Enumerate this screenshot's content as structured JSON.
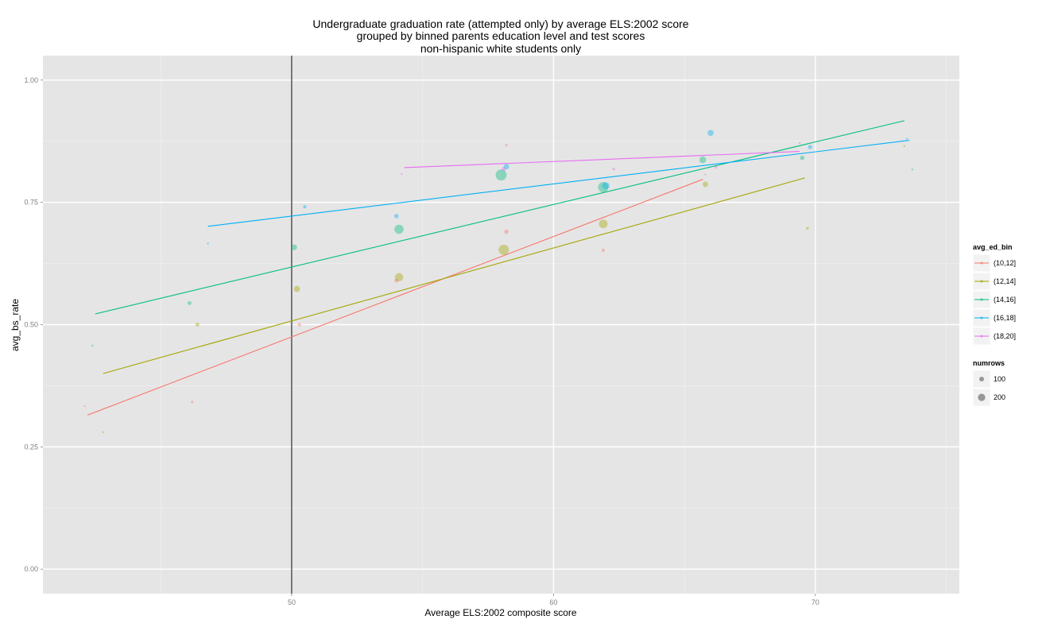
{
  "chart_data": {
    "type": "scatter",
    "title": [
      "Undergraduate graduation rate (attempted only) by average ELS:2002 score",
      "grouped by binned parents education level and test scores",
      "non-hispanic white students only"
    ],
    "xlabel": "Average ELS:2002 composite score",
    "ylabel": "avg_bs_rate",
    "xlim": [
      40.5,
      75.5
    ],
    "ylim": [
      -0.05,
      1.05
    ],
    "x_ticks": [
      50,
      60,
      70
    ],
    "x_tick_labels": [
      "50",
      "60",
      "70"
    ],
    "y_ticks": [
      0,
      0.25,
      0.5,
      0.75,
      1.0
    ],
    "y_tick_labels": [
      "0.00",
      "0.25",
      "0.50",
      "0.75",
      "1.00"
    ],
    "grid": true,
    "vline_x": 50,
    "legend_placement": "right",
    "color_legend": {
      "title": "avg_ed_bin",
      "entries": [
        "(10,12]",
        "(12,14]",
        "(14,16]",
        "(16,18]",
        "(18,20]"
      ]
    },
    "size_legend": {
      "title": "numrows",
      "entries": [
        {
          "label": "100",
          "value": 100
        },
        {
          "label": "200",
          "value": 200
        }
      ]
    },
    "series": [
      {
        "name": "(10,12]",
        "color": "#F8766D",
        "trend": [
          [
            42.2,
            0.315
          ],
          [
            65.7,
            0.797
          ]
        ],
        "points": [
          [
            42.1,
            0.333,
            5
          ],
          [
            46.2,
            0.342,
            8
          ],
          [
            50.3,
            0.5,
            15
          ],
          [
            54.0,
            0.59,
            20
          ],
          [
            58.2,
            0.69,
            25
          ],
          [
            58.2,
            0.867,
            8
          ],
          [
            61.9,
            0.652,
            15
          ],
          [
            65.8,
            0.807,
            5
          ]
        ]
      },
      {
        "name": "(12,14]",
        "color": "#A3A500",
        "trend": [
          [
            42.8,
            0.4
          ],
          [
            69.6,
            0.8
          ]
        ],
        "points": [
          [
            42.8,
            0.28,
            5
          ],
          [
            46.4,
            0.5,
            20
          ],
          [
            50.2,
            0.573,
            50
          ],
          [
            54.1,
            0.597,
            90
          ],
          [
            58.1,
            0.653,
            140
          ],
          [
            61.9,
            0.706,
            100
          ],
          [
            65.8,
            0.787,
            40
          ],
          [
            69.7,
            0.697,
            10
          ],
          [
            73.4,
            0.865,
            5
          ]
        ]
      },
      {
        "name": "(14,16]",
        "color": "#00BF7D",
        "trend": [
          [
            42.5,
            0.522
          ],
          [
            73.4,
            0.917
          ]
        ],
        "points": [
          [
            42.4,
            0.457,
            5
          ],
          [
            46.1,
            0.544,
            20
          ],
          [
            50.1,
            0.658,
            40
          ],
          [
            54.1,
            0.695,
            110
          ],
          [
            58.0,
            0.806,
            160
          ],
          [
            61.9,
            0.781,
            140
          ],
          [
            65.7,
            0.837,
            60
          ],
          [
            69.5,
            0.841,
            25
          ],
          [
            73.7,
            0.817,
            5
          ]
        ]
      },
      {
        "name": "(16,18]",
        "color": "#00B0F6",
        "trend": [
          [
            46.8,
            0.701
          ],
          [
            73.6,
            0.877
          ]
        ],
        "points": [
          [
            46.8,
            0.666,
            5
          ],
          [
            50.5,
            0.741,
            15
          ],
          [
            54.0,
            0.722,
            25
          ],
          [
            58.2,
            0.823,
            40
          ],
          [
            62.0,
            0.784,
            70
          ],
          [
            66.0,
            0.892,
            50
          ],
          [
            69.8,
            0.863,
            25
          ],
          [
            73.5,
            0.88,
            5
          ]
        ]
      },
      {
        "name": "(18,20]",
        "color": "#E76BF3",
        "trend": [
          [
            54.3,
            0.821
          ],
          [
            69.4,
            0.854
          ]
        ],
        "points": [
          [
            54.2,
            0.808,
            5
          ],
          [
            58.1,
            0.818,
            25
          ],
          [
            62.3,
            0.818,
            10
          ],
          [
            66.2,
            0.822,
            10
          ],
          [
            69.4,
            0.871,
            5
          ]
        ]
      }
    ]
  }
}
